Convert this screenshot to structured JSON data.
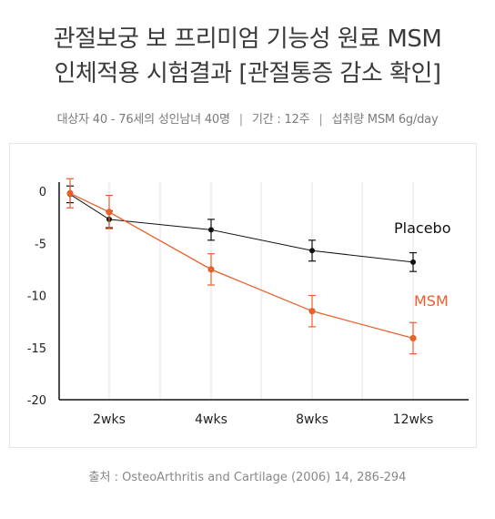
{
  "header": {
    "title_line1": "관절보궁 보 프리미엄 기능성 원료 MSM",
    "title_line2": "인체적용 시험결과 [관절통증 감소 확인]"
  },
  "study": {
    "subjects": "대상자 40 - 76세의 성인남녀 40명",
    "period": "기간 : 12주",
    "dose": "섭취량 MSM 6g/day",
    "separator": "|"
  },
  "source": "출처 : OsteoArthritis and Cartilage (2006) 14, 286-294",
  "colors": {
    "placebo": "#111111",
    "msm": "#e8602c",
    "grid": "#e3e3e3",
    "axis": "#111111"
  },
  "chart_data": {
    "type": "line",
    "title": "",
    "xlabel": "",
    "ylabel": "",
    "x": [
      "",
      "2wks",
      "4wks",
      "8wks",
      "12wks"
    ],
    "ylim": [
      -20,
      0
    ],
    "yticks": [
      0,
      -5,
      -10,
      -15,
      -20
    ],
    "grid": true,
    "legend": "inline-right",
    "series": [
      {
        "name": "Placebo",
        "color": "#111111",
        "values": [
          -0.3,
          -2.7,
          -3.7,
          -5.7,
          -6.8
        ],
        "error": [
          0.8,
          0.8,
          1.0,
          1.0,
          0.9
        ]
      },
      {
        "name": "MSM",
        "color": "#e8602c",
        "values": [
          -0.2,
          -2.0,
          -7.5,
          -11.5,
          -14.1
        ],
        "error": [
          1.4,
          1.6,
          1.5,
          1.5,
          1.5
        ]
      }
    ]
  }
}
